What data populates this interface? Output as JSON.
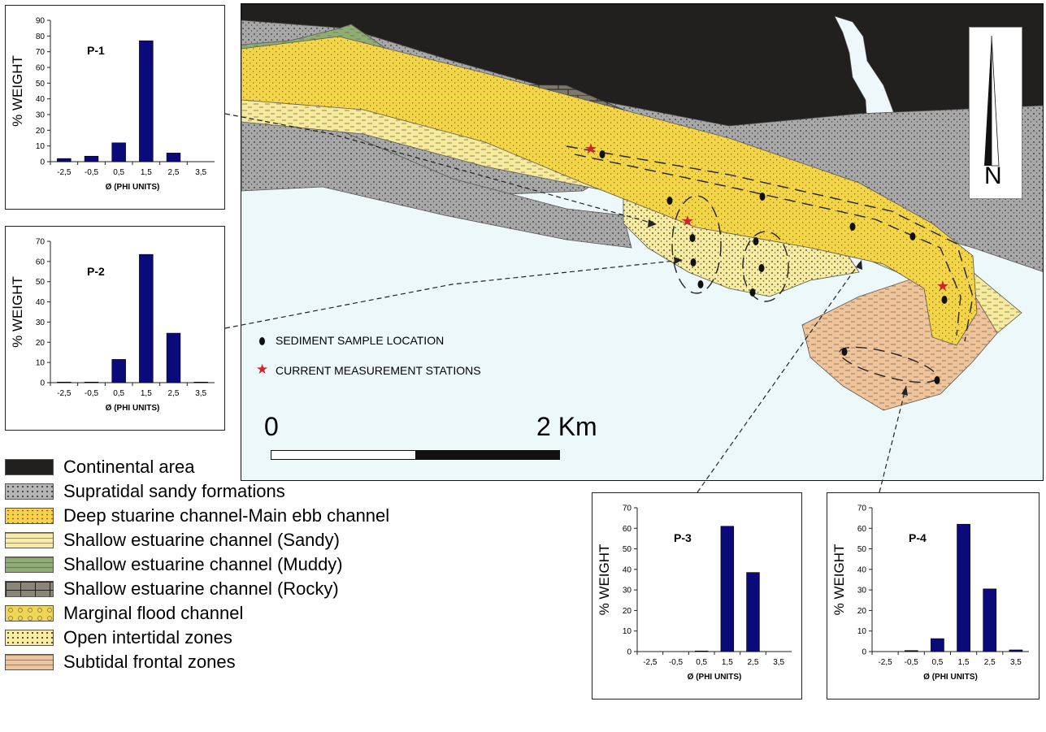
{
  "map": {
    "north_label": "N",
    "key": [
      {
        "symbol": "dot-icon",
        "label": "SEDIMENT SAMPLE LOCATION"
      },
      {
        "symbol": "star-icon",
        "label": "CURRENT MEASUREMENT STATIONS"
      }
    ],
    "scale": {
      "start_label": "0",
      "end_label": "2 Km"
    },
    "colors": {
      "continental": "#221f1f",
      "supratidal": "#a8a8a8",
      "deep_channel": "#f2d64a",
      "shallow_sandy": "#f6eb9c",
      "shallow_muddy": "#8dae73",
      "shallow_rocky": "#7d786a",
      "marginal_flood": "#f1d655",
      "open_intertidal": "#f7ec9f",
      "subtidal_frontal": "#efc49b",
      "water": "#ecf8fa"
    }
  },
  "legend": [
    {
      "label": "Continental area",
      "color": "#221f1f",
      "pattern": "solid"
    },
    {
      "label": "Supratidal sandy formations",
      "color": "#b5b5b5",
      "pattern": "dots-dark"
    },
    {
      "label": "Deep stuarine channel-Main ebb channel",
      "color": "#f2d64a",
      "pattern": "dots-red"
    },
    {
      "label": "Shallow estuarine channel (Sandy)",
      "color": "#f8eca4",
      "pattern": "dashes"
    },
    {
      "label": "Shallow estuarine channel (Muddy)",
      "color": "#8dae73",
      "pattern": "dashes"
    },
    {
      "label": "Shallow estuarine channel (Rocky)",
      "color": "#8a8577",
      "pattern": "bricks"
    },
    {
      "label": "Marginal flood channel",
      "color": "#f1d655",
      "pattern": "dots-circle"
    },
    {
      "label": "Open intertidal zones",
      "color": "#f7ec9f",
      "pattern": "dots-dark"
    },
    {
      "label": "Subtidal frontal zones",
      "color": "#efc49b",
      "pattern": "dashes"
    }
  ],
  "chart_data": [
    {
      "type": "bar",
      "title": "P-1",
      "categories": [
        "-2,5",
        "-0,5",
        "0,5",
        "1,5",
        "2,5",
        "3,5"
      ],
      "values": [
        2,
        3.5,
        12,
        77,
        5.5,
        0
      ],
      "xlabel": "Ø (PHI UNITS)",
      "ylabel": "% WEIGHT",
      "ylim": [
        0,
        90
      ],
      "yticks": [
        0,
        10,
        20,
        30,
        40,
        50,
        60,
        70,
        80,
        90
      ],
      "grid": false,
      "bar_color": "#0a0a7a"
    },
    {
      "type": "bar",
      "title": "P-2",
      "categories": [
        "-2,5",
        "-0,5",
        "0,5",
        "1,5",
        "2,5",
        "3,5"
      ],
      "values": [
        0.3,
        0.3,
        11.5,
        63.5,
        24.5,
        0.3
      ],
      "xlabel": "Ø (PHI UNITS)",
      "ylabel": "% WEIGHT",
      "ylim": [
        0,
        70
      ],
      "yticks": [
        0,
        10,
        20,
        30,
        40,
        50,
        60,
        70
      ],
      "grid": false,
      "bar_color": "#0a0a7a"
    },
    {
      "type": "bar",
      "title": "P-3",
      "categories": [
        "-2,5",
        "-0,5",
        "0,5",
        "1,5",
        "2,5",
        "3,5"
      ],
      "values": [
        0,
        0,
        0.3,
        61,
        38.5,
        0
      ],
      "xlabel": "Ø (PHI UNITS)",
      "ylabel": "% WEIGHT",
      "ylim": [
        0,
        70
      ],
      "yticks": [
        0,
        10,
        20,
        30,
        40,
        50,
        60,
        70
      ],
      "grid": false,
      "bar_color": "#0a0a7a"
    },
    {
      "type": "bar",
      "title": "P-4",
      "categories": [
        "-2,5",
        "-0,5",
        "0,5",
        "1,5",
        "2,5",
        "3,5"
      ],
      "values": [
        0,
        0.5,
        6.3,
        62,
        30.5,
        0.8
      ],
      "xlabel": "Ø (PHI UNITS)",
      "ylabel": "% WEIGHT",
      "ylim": [
        0,
        70
      ],
      "yticks": [
        0,
        10,
        20,
        30,
        40,
        50,
        60,
        70
      ],
      "grid": false,
      "bar_color": "#0a0a7a"
    }
  ]
}
